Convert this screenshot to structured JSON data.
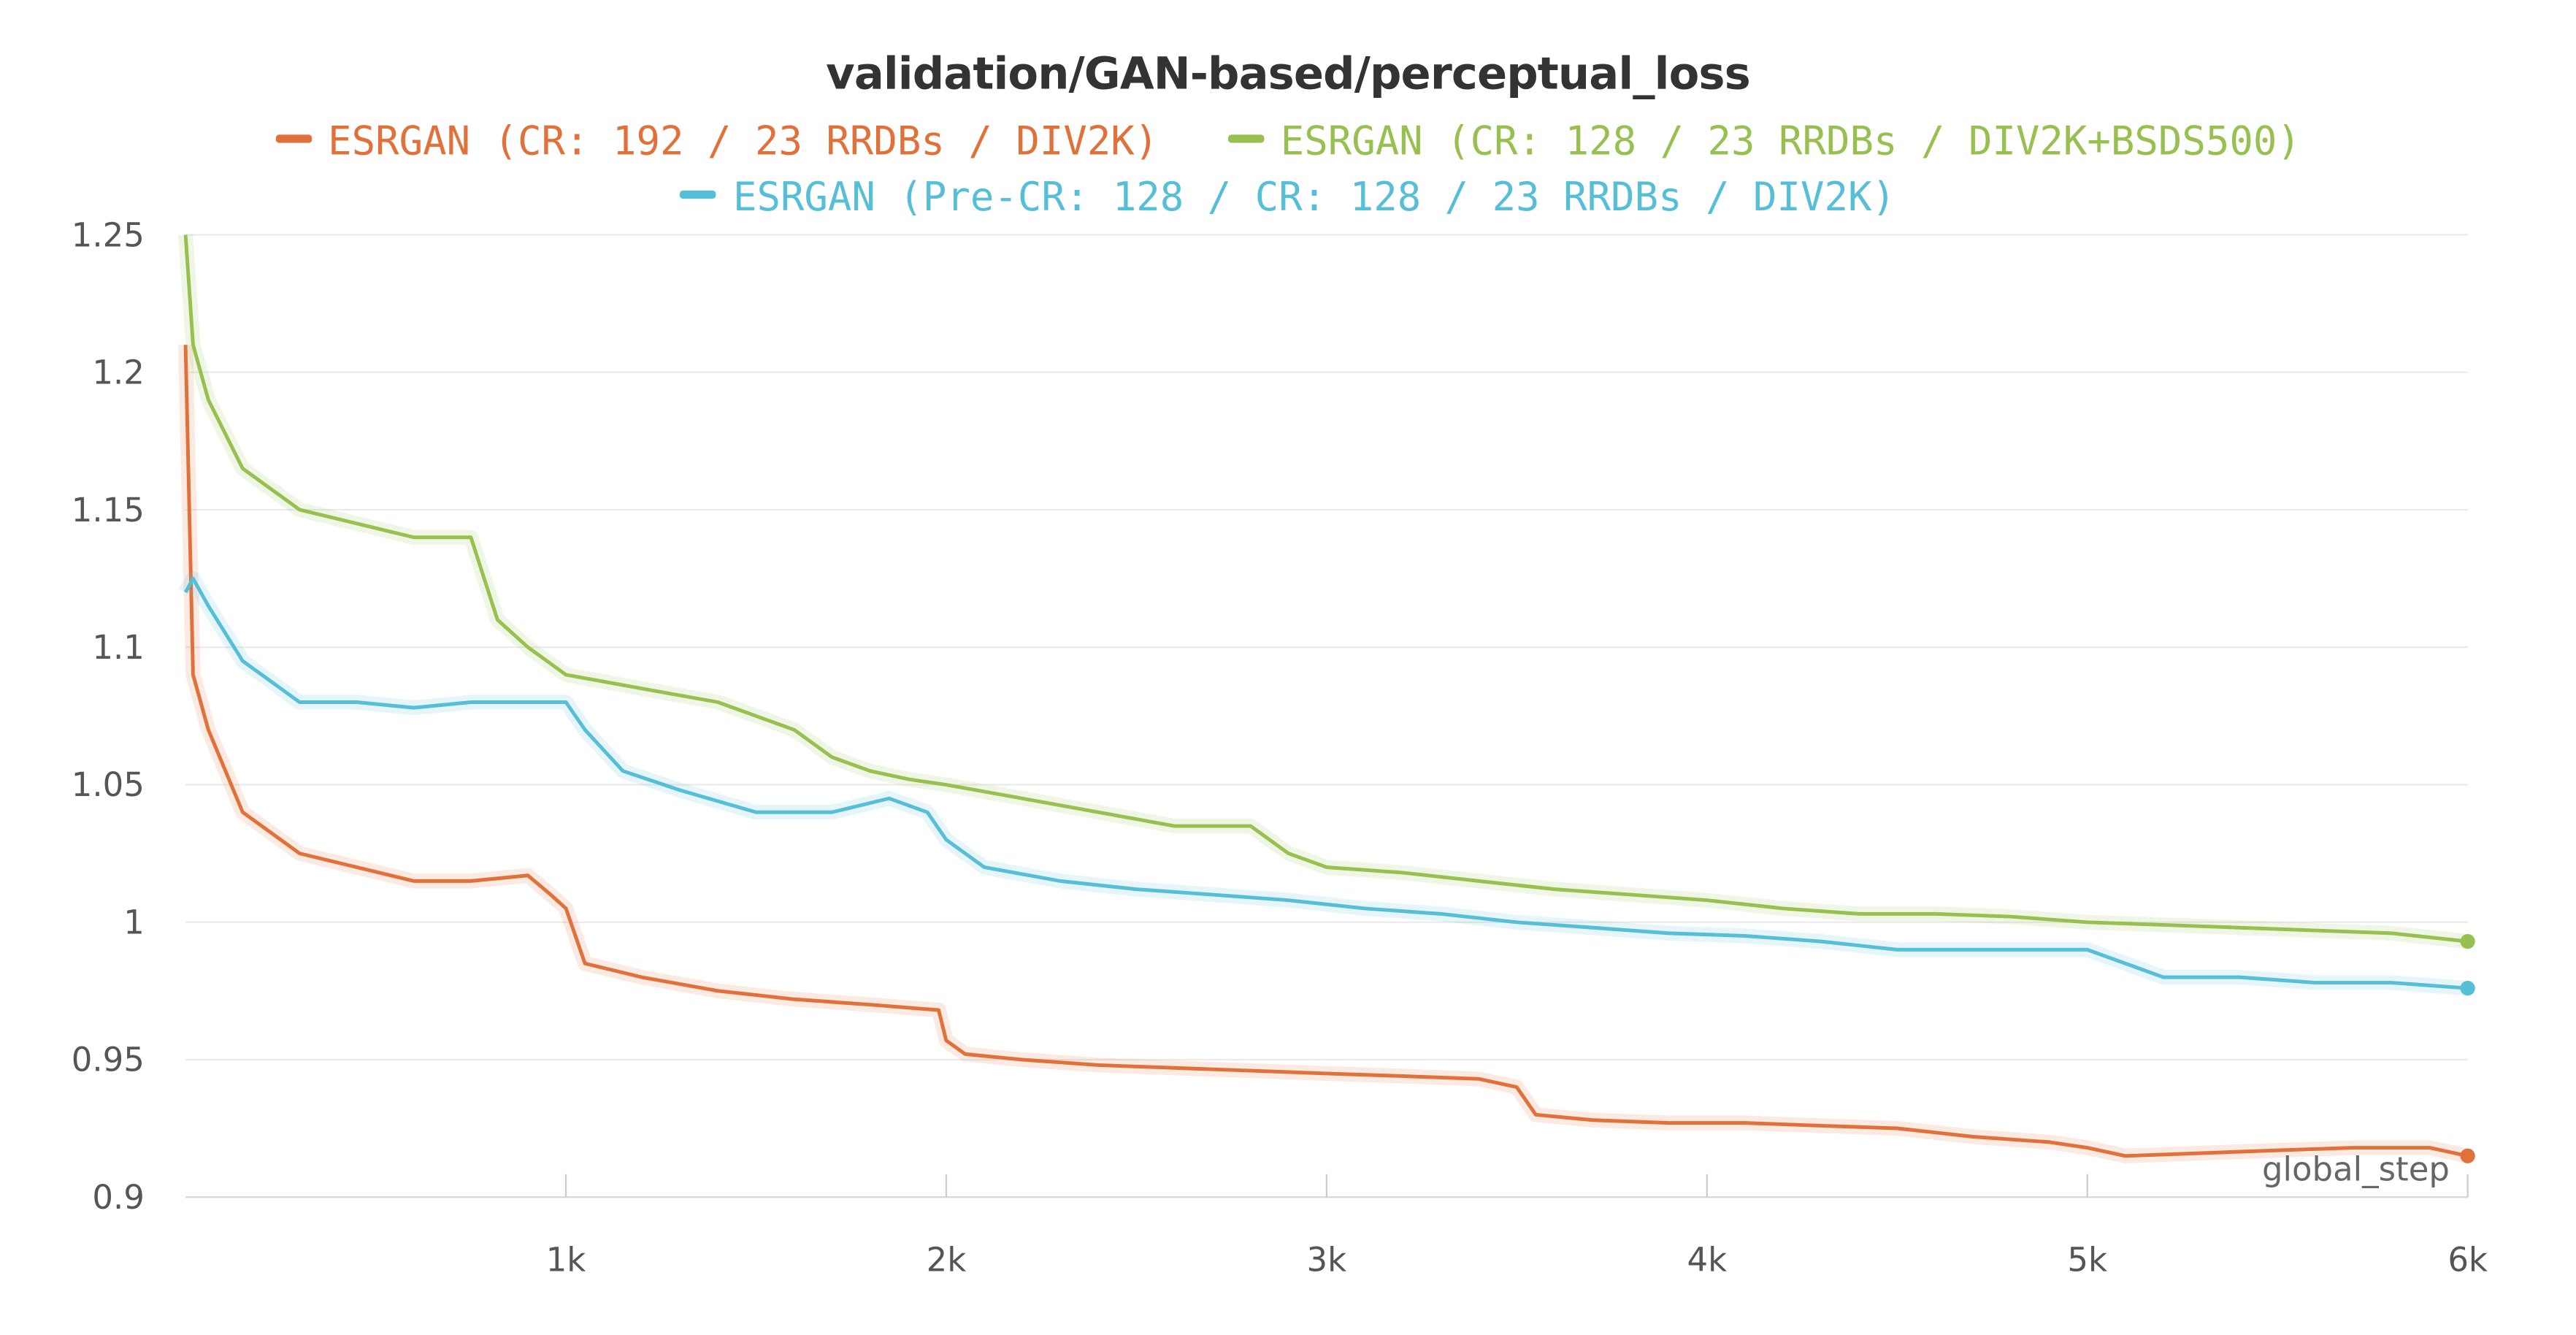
{
  "chart_data": {
    "type": "line",
    "title": "validation/GAN-based/perceptual_loss",
    "xlabel": "global_step",
    "ylabel": "",
    "xlim": [
      0,
      6000
    ],
    "ylim": [
      0.9,
      1.25
    ],
    "x_ticks": [
      {
        "value": 1000,
        "label": "1k"
      },
      {
        "value": 2000,
        "label": "2k"
      },
      {
        "value": 3000,
        "label": "3k"
      },
      {
        "value": 4000,
        "label": "4k"
      },
      {
        "value": 5000,
        "label": "5k"
      },
      {
        "value": 6000,
        "label": "6k"
      }
    ],
    "y_ticks": [
      {
        "value": 0.9,
        "label": "0.9"
      },
      {
        "value": 0.95,
        "label": "0.95"
      },
      {
        "value": 1.0,
        "label": "1"
      },
      {
        "value": 1.05,
        "label": "1.05"
      },
      {
        "value": 1.1,
        "label": "1.1"
      },
      {
        "value": 1.15,
        "label": "1.15"
      },
      {
        "value": 1.2,
        "label": "1.2"
      },
      {
        "value": 1.25,
        "label": "1.25"
      }
    ],
    "grid": true,
    "legend_position": "top-center",
    "series": [
      {
        "name": "ESRGAN (CR: 192 / 23 RRDBs / DIV2K)",
        "color": "#e0713a",
        "x": [
          0,
          20,
          60,
          150,
          300,
          450,
          600,
          750,
          900,
          960,
          1000,
          1050,
          1200,
          1400,
          1600,
          1800,
          1980,
          2000,
          2050,
          2200,
          2400,
          2600,
          2800,
          3000,
          3200,
          3400,
          3500,
          3550,
          3700,
          3900,
          4100,
          4300,
          4500,
          4700,
          4900,
          5000,
          5100,
          5300,
          5500,
          5700,
          5900,
          6000
        ],
        "y": [
          1.21,
          1.09,
          1.07,
          1.04,
          1.025,
          1.02,
          1.015,
          1.015,
          1.017,
          1.01,
          1.005,
          0.985,
          0.98,
          0.975,
          0.972,
          0.97,
          0.968,
          0.957,
          0.952,
          0.95,
          0.948,
          0.947,
          0.946,
          0.945,
          0.944,
          0.943,
          0.94,
          0.93,
          0.928,
          0.927,
          0.927,
          0.926,
          0.925,
          0.922,
          0.92,
          0.918,
          0.915,
          0.916,
          0.917,
          0.918,
          0.918,
          0.915
        ]
      },
      {
        "name": "ESRGAN (CR: 128 / 23 RRDBs / DIV2K+BSDS500)",
        "color": "#98c050",
        "x": [
          0,
          20,
          60,
          150,
          300,
          450,
          600,
          750,
          820,
          900,
          1000,
          1200,
          1400,
          1600,
          1700,
          1800,
          1900,
          2000,
          2200,
          2400,
          2600,
          2800,
          2900,
          3000,
          3200,
          3400,
          3600,
          3800,
          4000,
          4200,
          4400,
          4600,
          4800,
          5000,
          5200,
          5400,
          5600,
          5800,
          6000
        ],
        "y": [
          1.25,
          1.21,
          1.19,
          1.165,
          1.15,
          1.145,
          1.14,
          1.14,
          1.11,
          1.1,
          1.09,
          1.085,
          1.08,
          1.07,
          1.06,
          1.055,
          1.052,
          1.05,
          1.045,
          1.04,
          1.035,
          1.035,
          1.025,
          1.02,
          1.018,
          1.015,
          1.012,
          1.01,
          1.008,
          1.005,
          1.003,
          1.003,
          1.002,
          1.0,
          0.999,
          0.998,
          0.997,
          0.996,
          0.993
        ]
      },
      {
        "name": "ESRGAN (Pre-CR: 128 / CR: 128 / 23 RRDBs / DIV2K)",
        "color": "#56bfd7",
        "x": [
          0,
          20,
          60,
          150,
          300,
          450,
          600,
          750,
          900,
          1000,
          1050,
          1150,
          1300,
          1500,
          1700,
          1850,
          1950,
          2000,
          2100,
          2300,
          2500,
          2700,
          2900,
          3100,
          3300,
          3500,
          3700,
          3900,
          4100,
          4300,
          4500,
          4700,
          4900,
          5000,
          5100,
          5200,
          5400,
          5600,
          5800,
          6000
        ],
        "y": [
          1.12,
          1.125,
          1.115,
          1.095,
          1.08,
          1.08,
          1.078,
          1.08,
          1.08,
          1.08,
          1.07,
          1.055,
          1.048,
          1.04,
          1.04,
          1.045,
          1.04,
          1.03,
          1.02,
          1.015,
          1.012,
          1.01,
          1.008,
          1.005,
          1.003,
          1.0,
          0.998,
          0.996,
          0.995,
          0.993,
          0.99,
          0.99,
          0.99,
          0.99,
          0.985,
          0.98,
          0.98,
          0.978,
          0.978,
          0.976
        ]
      }
    ]
  }
}
